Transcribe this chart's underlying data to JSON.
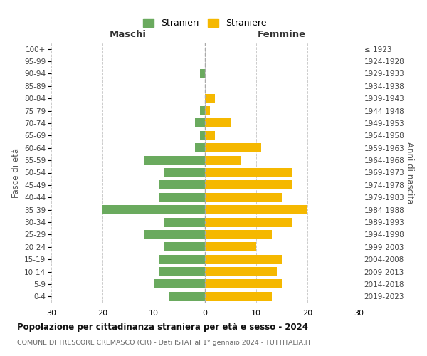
{
  "age_groups": [
    "0-4",
    "5-9",
    "10-14",
    "15-19",
    "20-24",
    "25-29",
    "30-34",
    "35-39",
    "40-44",
    "45-49",
    "50-54",
    "55-59",
    "60-64",
    "65-69",
    "70-74",
    "75-79",
    "80-84",
    "85-89",
    "90-94",
    "95-99",
    "100+"
  ],
  "birth_years": [
    "2019-2023",
    "2014-2018",
    "2009-2013",
    "2004-2008",
    "1999-2003",
    "1994-1998",
    "1989-1993",
    "1984-1988",
    "1979-1983",
    "1974-1978",
    "1969-1973",
    "1964-1968",
    "1959-1963",
    "1954-1958",
    "1949-1953",
    "1944-1948",
    "1939-1943",
    "1934-1938",
    "1929-1933",
    "1924-1928",
    "≤ 1923"
  ],
  "maschi": [
    7,
    10,
    9,
    9,
    8,
    12,
    8,
    20,
    9,
    9,
    8,
    12,
    2,
    1,
    2,
    1,
    0,
    0,
    1,
    0,
    0
  ],
  "femmine": [
    13,
    15,
    14,
    15,
    10,
    13,
    17,
    20,
    15,
    17,
    17,
    7,
    11,
    2,
    5,
    1,
    2,
    0,
    0,
    0,
    0
  ],
  "male_color": "#6aaa5e",
  "female_color": "#f5b800",
  "title": "Popolazione per cittadinanza straniera per età e sesso - 2024",
  "subtitle": "COMUNE DI TRESCORE CREMASCO (CR) - Dati ISTAT al 1° gennaio 2024 - TUTTITALIA.IT",
  "xlabel_left": "Maschi",
  "xlabel_right": "Femmine",
  "ylabel_left": "Fasce di età",
  "ylabel_right": "Anni di nascita",
  "legend_male": "Stranieri",
  "legend_female": "Straniere",
  "xlim": 30,
  "background_color": "#ffffff",
  "grid_color": "#cccccc"
}
